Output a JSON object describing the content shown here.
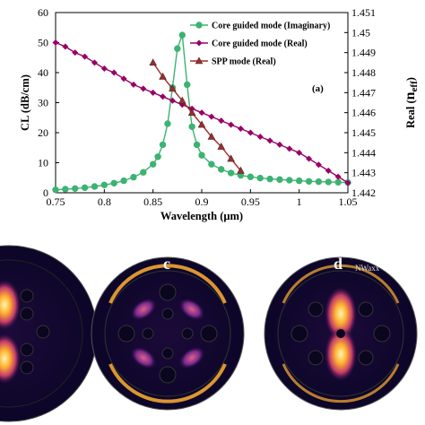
{
  "chart_data": {
    "type": "line",
    "panel_label": "(a)",
    "xlabel": "Wavelength (μm)",
    "ylabel_left": "CL (dB/cm)",
    "ylabel_right_prefix": "Real (",
    "ylabel_right_n": "n",
    "ylabel_right_sub": "eff",
    "ylabel_right_suffix": ")",
    "xlim": [
      0.75,
      1.05
    ],
    "ylim_left": [
      0,
      60
    ],
    "ylim_right": [
      1.442,
      1.451
    ],
    "xticks": [
      0.75,
      0.8,
      0.85,
      0.9,
      0.95,
      1,
      1.05
    ],
    "xtick_labels": [
      "0.75",
      "0.8",
      "0.85",
      "0.9",
      "0.95",
      "1",
      "1.05"
    ],
    "yticks_left": [
      0,
      10,
      20,
      30,
      40,
      50,
      60
    ],
    "ytick_labels_left": [
      "0",
      "10",
      "20",
      "30",
      "40",
      "50",
      "60"
    ],
    "yticks_right": [
      1.442,
      1.443,
      1.444,
      1.445,
      1.446,
      1.447,
      1.448,
      1.449,
      1.45,
      1.451
    ],
    "ytick_labels_right": [
      "1.442",
      "1.443",
      "1.444",
      "1.445",
      "1.446",
      "1.447",
      "1.448",
      "1.449",
      "1.45",
      "1.451"
    ],
    "legend_position": "top-right",
    "series": [
      {
        "name": "Core guided mode (Imaginary)",
        "axis": "left",
        "color": "#3cb371",
        "marker": "circle",
        "x": [
          0.75,
          0.76,
          0.77,
          0.78,
          0.79,
          0.8,
          0.81,
          0.82,
          0.83,
          0.84,
          0.85,
          0.855,
          0.86,
          0.865,
          0.87,
          0.875,
          0.88,
          0.885,
          0.89,
          0.895,
          0.9,
          0.91,
          0.92,
          0.93,
          0.94,
          0.95,
          0.96,
          0.97,
          0.98,
          0.99,
          1.0,
          1.01,
          1.02,
          1.03,
          1.04,
          1.05
        ],
        "values": [
          1.0,
          1.2,
          1.4,
          1.7,
          2.1,
          2.6,
          3.2,
          4.0,
          5.2,
          6.8,
          9.5,
          12.0,
          16.0,
          23.0,
          35.0,
          48.0,
          52.5,
          36.0,
          22.0,
          16.0,
          12.5,
          9.5,
          7.8,
          6.6,
          5.8,
          5.3,
          4.9,
          4.6,
          4.4,
          4.2,
          4.0,
          3.8,
          3.7,
          3.6,
          3.5,
          3.4
        ]
      },
      {
        "name": "Core guided mode (Real)",
        "axis": "right",
        "color": "#990066",
        "marker": "diamond",
        "x": [
          0.75,
          0.76,
          0.77,
          0.78,
          0.79,
          0.8,
          0.81,
          0.82,
          0.83,
          0.84,
          0.85,
          0.86,
          0.87,
          0.88,
          0.89,
          0.9,
          0.91,
          0.92,
          0.93,
          0.94,
          0.95,
          0.96,
          0.97,
          0.98,
          0.99,
          1.0,
          1.01,
          1.02,
          1.03,
          1.04,
          1.05
        ],
        "values": [
          1.4495,
          1.4493,
          1.449,
          1.4488,
          1.4485,
          1.4482,
          1.448,
          1.4477,
          1.4474,
          1.4472,
          1.447,
          1.4468,
          1.4466,
          1.4464,
          1.4462,
          1.446,
          1.4458,
          1.4456,
          1.4454,
          1.4452,
          1.445,
          1.4448,
          1.4446,
          1.4444,
          1.4442,
          1.444,
          1.4437,
          1.4434,
          1.4431,
          1.4428,
          1.4425
        ]
      },
      {
        "name": "SPP mode (Real)",
        "axis": "right",
        "color": "#a52a2a",
        "marker": "triangle",
        "x": [
          0.85,
          0.86,
          0.87,
          0.88,
          0.89,
          0.9,
          0.91,
          0.92,
          0.93,
          0.94
        ],
        "values": [
          1.4485,
          1.4478,
          1.4472,
          1.4466,
          1.446,
          1.4454,
          1.4448,
          1.4443,
          1.4437,
          1.4431
        ]
      }
    ]
  },
  "bottom_panels": [
    {
      "label": "c"
    },
    {
      "label": "d",
      "annotation": "NWaxx"
    }
  ]
}
